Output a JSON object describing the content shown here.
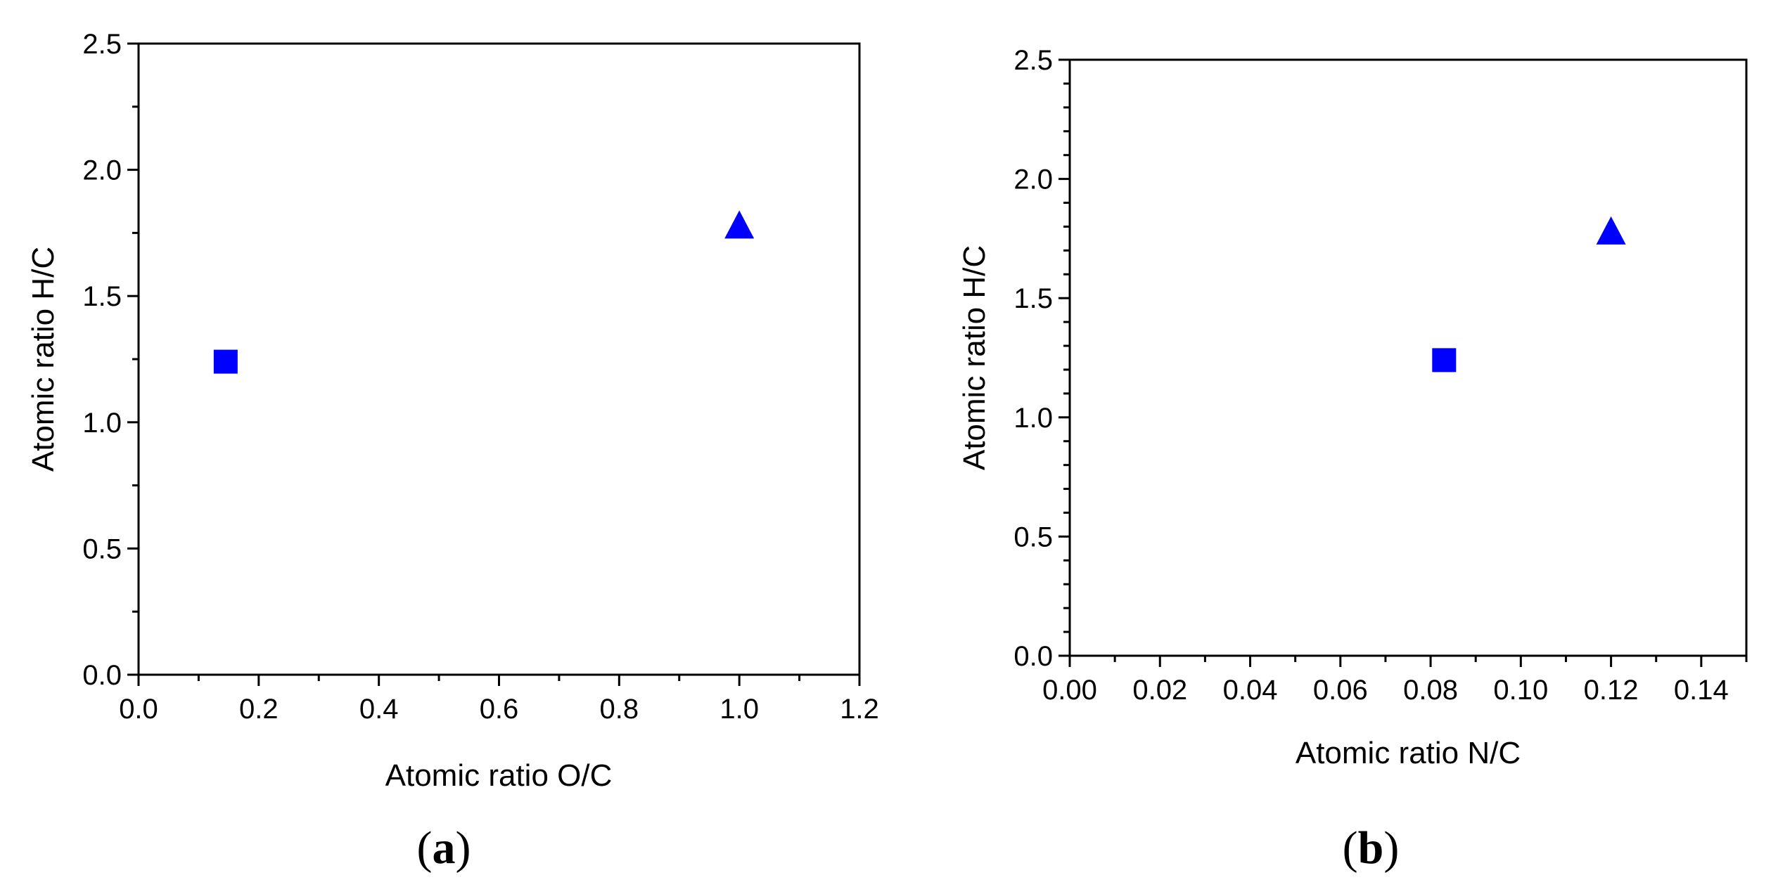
{
  "chart_data": [
    {
      "type": "scatter",
      "panel_label": "a",
      "xlabel": "Atomic ratio O/C",
      "ylabel": "Atomic ratio H/C",
      "xlim": [
        0.0,
        1.2
      ],
      "ylim": [
        0.0,
        2.5
      ],
      "x_major_ticks": [
        "0.0",
        "0.2",
        "0.4",
        "0.6",
        "0.8",
        "1.0",
        "1.2"
      ],
      "y_major_ticks": [
        "0.0",
        "0.5",
        "1.0",
        "1.5",
        "2.0",
        "2.5"
      ],
      "grid": false,
      "points": [
        {
          "x": 0.145,
          "y": 1.24,
          "marker": "square",
          "color": "#0000ff"
        },
        {
          "x": 1.0,
          "y": 1.77,
          "marker": "triangle",
          "color": "#0000ff"
        }
      ]
    },
    {
      "type": "scatter",
      "panel_label": "b",
      "xlabel": "Atomic ratio N/C",
      "ylabel": "Atomic ratio H/C",
      "xlim": [
        0.0,
        0.15
      ],
      "ylim": [
        0.0,
        2.5
      ],
      "x_major_ticks": [
        "0.00",
        "0.02",
        "0.04",
        "0.06",
        "0.08",
        "0.10",
        "0.12",
        "0.14"
      ],
      "y_major_ticks": [
        "0.0",
        "0.5",
        "1.0",
        "1.5",
        "2.0",
        "2.5"
      ],
      "grid": false,
      "points": [
        {
          "x": 0.083,
          "y": 1.24,
          "marker": "square",
          "color": "#0000ff"
        },
        {
          "x": 0.12,
          "y": 1.77,
          "marker": "triangle",
          "color": "#0000ff"
        }
      ]
    }
  ]
}
